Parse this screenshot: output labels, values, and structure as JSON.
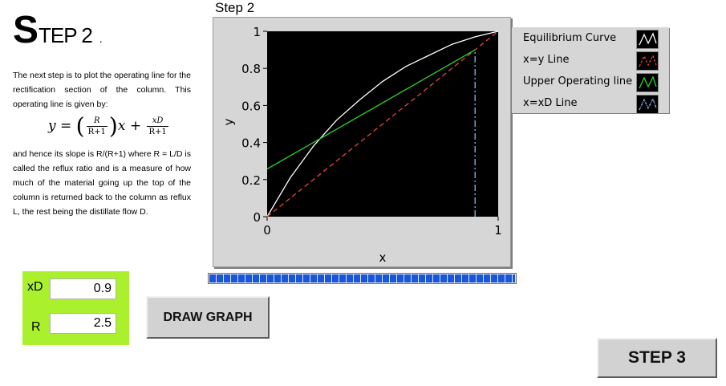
{
  "heading": {
    "cap": "S",
    "rest": "TEP 2",
    "tail": "."
  },
  "description": {
    "intro": "The next step is to plot the operating line for the rectification section of the column. This operating line is given by:",
    "formula": {
      "y": "y",
      "equals": "=",
      "num_r": "R",
      "den_r": "R+1",
      "x": "x",
      "plus": "+",
      "num_xd": "xD",
      "den_xd": "R+1",
      "open_paren": "(",
      "close_paren": ")"
    },
    "explanation": "and hence its slope is R/(R+1) where R = L/D is called the reflux ratio and is a measure of how much of the material going up the top of the column is returned back to the column as reflux L, the rest being the distillate flow D."
  },
  "chart": {
    "caption": "Step 2",
    "legend": [
      {
        "label": "Equilibrium Curve",
        "color": "#ffffff",
        "style": "solid"
      },
      {
        "label": "x=y Line",
        "color": "#e8453c",
        "style": "dashed"
      },
      {
        "label": "Upper Operating line",
        "color": "#2bd42b",
        "style": "solid"
      },
      {
        "label": "x=xD Line",
        "color": "#8fb8f0",
        "style": "dashdot"
      }
    ]
  },
  "chart_data": {
    "type": "line",
    "title": "Step 2",
    "xlabel": "x",
    "ylabel": "y",
    "xlim": [
      0,
      1
    ],
    "ylim": [
      0,
      1
    ],
    "x_ticks": [
      "0",
      "1"
    ],
    "y_ticks": [
      "0",
      "0.2",
      "0.4",
      "0.6",
      "0.8",
      "1"
    ],
    "y_tick_values": [
      0,
      0.2,
      0.4,
      0.6,
      0.8,
      1
    ],
    "grid": false,
    "legend_position": "right",
    "background": "#000000",
    "series": [
      {
        "name": "Equilibrium Curve",
        "color": "#ffffff",
        "dash": "",
        "x": [
          0,
          0.1,
          0.2,
          0.3,
          0.4,
          0.5,
          0.6,
          0.7,
          0.8,
          0.9,
          1
        ],
        "y": [
          0,
          0.21,
          0.38,
          0.52,
          0.63,
          0.73,
          0.81,
          0.87,
          0.93,
          0.97,
          1
        ]
      },
      {
        "name": "x=y Line",
        "color": "#e8453c",
        "dash": "6,4",
        "x": [
          0,
          1
        ],
        "y": [
          0,
          1
        ]
      },
      {
        "name": "Upper Operating line",
        "color": "#2bd42b",
        "dash": "",
        "x": [
          0,
          0.9
        ],
        "y": [
          0.257,
          0.9
        ]
      },
      {
        "name": "x=xD Line",
        "color": "#8fb8f0",
        "dash": "8,3,2,3",
        "x": [
          0.9,
          0.9
        ],
        "y": [
          0,
          0.9
        ]
      }
    ]
  },
  "progress": {
    "value": 1.0,
    "color": "#1a56d8"
  },
  "inputs": {
    "xd": {
      "label": "xD",
      "value": "0.9"
    },
    "r": {
      "label": "R",
      "value": "2.5"
    },
    "panel_color": "#aaf02c"
  },
  "buttons": {
    "draw_graph": "DRAW GRAPH",
    "step3": "STEP 3"
  }
}
